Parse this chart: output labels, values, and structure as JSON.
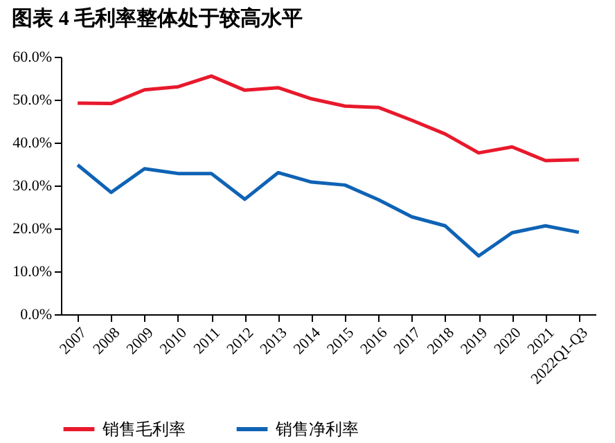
{
  "chart_data": {
    "type": "line",
    "title": "图表 4   毛利率整体处于较高水平",
    "categories": [
      "2007",
      "2008",
      "2009",
      "2010",
      "2011",
      "2012",
      "2013",
      "2014",
      "2015",
      "2016",
      "2017",
      "2018",
      "2019",
      "2020",
      "2021",
      "2022Q1-Q3"
    ],
    "series": [
      {
        "name": "销售毛利率",
        "color": "#e8192c",
        "values": [
          49.2,
          49.1,
          52.3,
          53.0,
          55.5,
          52.2,
          52.8,
          50.2,
          48.5,
          48.2,
          45.2,
          42.0,
          37.6,
          39.0,
          35.8,
          36.0
        ]
      },
      {
        "name": "销售净利率",
        "color": "#0f63b5",
        "values": [
          34.8,
          28.4,
          33.9,
          32.8,
          32.8,
          26.8,
          33.0,
          30.8,
          30.1,
          26.7,
          22.7,
          20.6,
          13.6,
          19.0,
          20.6,
          19.1
        ]
      }
    ],
    "ylim": [
      0,
      60
    ],
    "yticks": [
      {
        "value": 0,
        "label": "0.0%"
      },
      {
        "value": 10,
        "label": "10.0%"
      },
      {
        "value": 20,
        "label": "20.0%"
      },
      {
        "value": 30,
        "label": "30.0%"
      },
      {
        "value": 40,
        "label": "40.0%"
      },
      {
        "value": 50,
        "label": "50.0%"
      },
      {
        "value": 60,
        "label": "60.0%"
      }
    ],
    "grid": false,
    "legend": "bottom",
    "marker": "none",
    "line_style": "solid"
  }
}
